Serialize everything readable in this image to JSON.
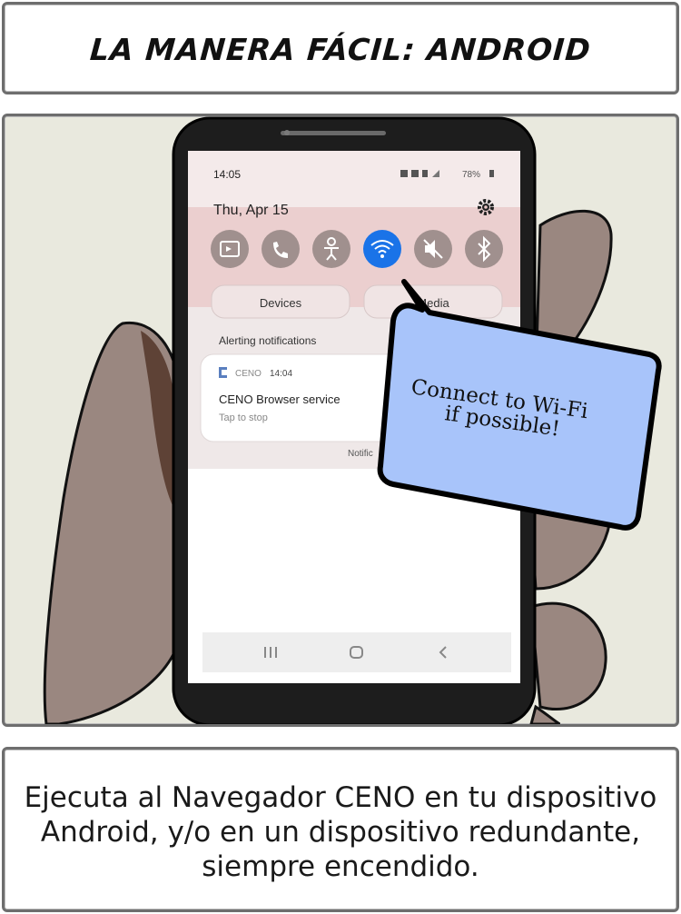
{
  "title": "LA MANERA FÁCIL: ANDROID",
  "phone": {
    "status_time": "14:05",
    "status_battery": "78%",
    "date": "Thu, Apr 15",
    "quick_toggles": [
      {
        "icon": "screen-cast-icon",
        "active": false
      },
      {
        "icon": "call-icon",
        "active": false
      },
      {
        "icon": "accessibility-icon",
        "active": false
      },
      {
        "icon": "wifi-icon",
        "active": true
      },
      {
        "icon": "mute-icon",
        "active": false
      },
      {
        "icon": "bluetooth-icon",
        "active": false
      }
    ],
    "devices_label": "Devices",
    "media_label": "Media",
    "alerting_label": "Alerting notifications",
    "notification": {
      "app_name": "CENO",
      "time": "14:04",
      "title": "CENO Browser service",
      "subtitle": "Tap to stop"
    },
    "notification_settings_label": "Notific",
    "colors": {
      "wifi_active": "#1a73e8",
      "toggle_inactive": "#a0908e",
      "shade_tint": "#e8c6c6"
    }
  },
  "speech_bubble": {
    "line1": "Connect to Wi-Fi",
    "line2": "if possible!",
    "color": "#a8c4fa"
  },
  "caption": {
    "line1": "Ejecuta al Navegador CENO en tu dispositivo",
    "line2": "Android, y/o en un dispositivo redundante,",
    "line3": "siempre encendido."
  }
}
